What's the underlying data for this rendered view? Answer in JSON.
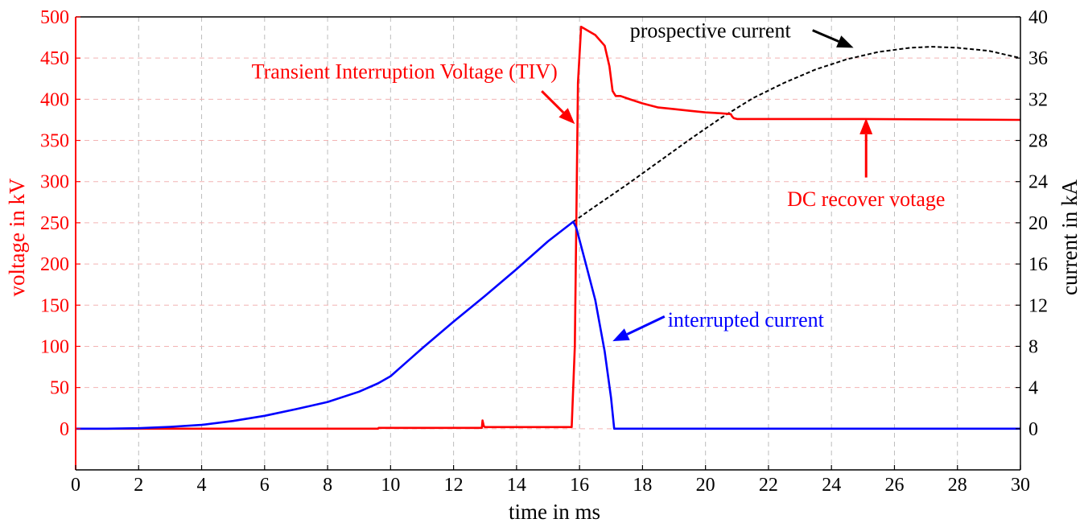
{
  "colors": {
    "voltage": "#ff0000",
    "interrupted": "#0000ff",
    "prospective": "#000000",
    "grid": "#bdbdbd",
    "grid_dash": "#f2b3b3",
    "axis": "#000000"
  },
  "chart_data": {
    "type": "line",
    "xlabel": "time in ms",
    "ylabel_left": "voltage in kV",
    "ylabel_right": "current in kA",
    "xlim": [
      0,
      30
    ],
    "ylim_left": [
      -50,
      500
    ],
    "ylim_right": [
      -4,
      40
    ],
    "x_ticks": [
      0,
      2,
      4,
      6,
      8,
      10,
      12,
      14,
      16,
      18,
      20,
      22,
      24,
      26,
      28,
      30
    ],
    "y_left_ticks": [
      0,
      50,
      100,
      150,
      200,
      250,
      300,
      350,
      400,
      450,
      500
    ],
    "y_right_ticks": [
      0,
      4,
      8,
      12,
      16,
      20,
      24,
      28,
      32,
      36,
      40
    ],
    "grid": true,
    "series": [
      {
        "key": "voltage",
        "axis": "left",
        "style": "solid",
        "x": [
          0,
          9.6,
          9.62,
          12.9,
          12.92,
          12.96,
          13.0,
          15.75,
          15.85,
          15.95,
          16.05,
          16.5,
          16.8,
          16.95,
          17.05,
          17.15,
          17.3,
          17.6,
          18.0,
          18.5,
          19.0,
          19.5,
          20.0,
          20.5,
          20.8,
          20.85,
          20.9,
          21.0,
          25,
          30
        ],
        "values": [
          0,
          0,
          1,
          1,
          10,
          3,
          2,
          2,
          100,
          420,
          488,
          478,
          465,
          440,
          410,
          404,
          404,
          400,
          395,
          390,
          388,
          386,
          384,
          383,
          382,
          379,
          377,
          376,
          376,
          375
        ]
      },
      {
        "key": "interrupted",
        "axis": "right",
        "style": "solid",
        "x": [
          0,
          1,
          2,
          3,
          4,
          5,
          6,
          7,
          8,
          9,
          9.6,
          10,
          11,
          12,
          13,
          14,
          15,
          15.8,
          15.9,
          16.2,
          16.5,
          16.8,
          17.0,
          17.1,
          20,
          25,
          30
        ],
        "values": [
          0,
          0.0,
          0.05,
          0.18,
          0.37,
          0.75,
          1.25,
          1.9,
          2.6,
          3.6,
          4.4,
          5.1,
          7.8,
          10.4,
          12.9,
          15.5,
          18.2,
          20.1,
          19.5,
          16.0,
          12.5,
          7.5,
          3.0,
          0,
          0,
          0,
          0
        ]
      },
      {
        "key": "prospective",
        "axis": "right",
        "style": "dashed",
        "x": [
          15.8,
          16.5,
          17.5,
          18.5,
          19.5,
          20.5,
          21.5,
          22.5,
          23.5,
          24.5,
          25.5,
          26.5,
          27.2,
          28,
          29,
          30
        ],
        "values": [
          20.1,
          21.6,
          23.7,
          25.9,
          28.1,
          30.2,
          32.1,
          33.6,
          34.9,
          35.9,
          36.6,
          37.0,
          37.1,
          37.0,
          36.7,
          36.0
        ]
      }
    ],
    "annotations": [
      {
        "key": "tiv",
        "text": "Transient Interruption Voltage (TIV)",
        "color": "voltage",
        "axis": "left",
        "text_x": 15.3,
        "text_y": 434,
        "arrow_from": [
          14.8,
          410
        ],
        "arrow_to": [
          15.85,
          370
        ]
      },
      {
        "key": "prospective",
        "text": "prospective current",
        "color": "prospective",
        "axis": "right",
        "text_x": 17.6,
        "text_y": 38.7,
        "arrow_from": [
          23.4,
          38.7
        ],
        "arrow_to": [
          24.7,
          37.0
        ]
      },
      {
        "key": "dc",
        "text": "DC recover votage",
        "color": "voltage",
        "axis": "left",
        "text_x": 25.1,
        "text_y": 279,
        "arrow_from": [
          25.1,
          305
        ],
        "arrow_to": [
          25.1,
          377
        ]
      },
      {
        "key": "interrupted",
        "text": "interrupted current",
        "color": "interrupted",
        "axis": "right",
        "text_x": 18.8,
        "text_y": 10.6,
        "arrow_from": [
          18.7,
          10.9
        ],
        "arrow_to": [
          17.05,
          8.5
        ]
      }
    ]
  }
}
